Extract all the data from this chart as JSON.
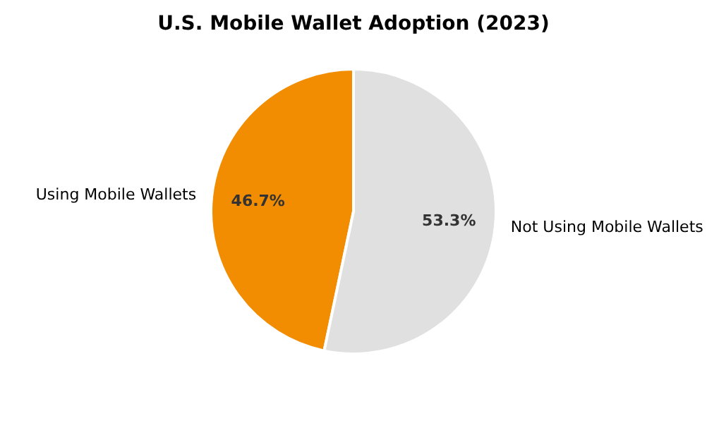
{
  "chart_data": {
    "type": "pie",
    "title": "U.S. Mobile Wallet Adoption (2023)",
    "categories": [
      "Using Mobile Wallets",
      "Not Using Mobile Wallets"
    ],
    "values": [
      46.7,
      53.3
    ],
    "colors": [
      "#f28c00",
      "#e0e0e0"
    ],
    "value_labels": [
      "46.7%",
      "53.3%"
    ]
  }
}
